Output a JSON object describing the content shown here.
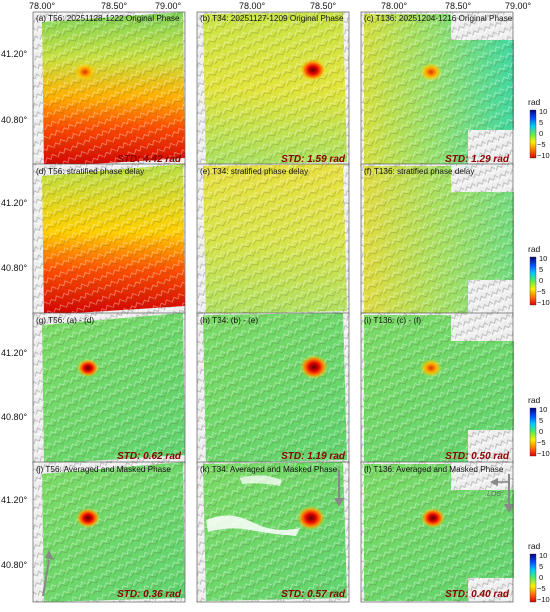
{
  "axes": {
    "lon_ticks": [
      "78.00°",
      "78.50°",
      "79.00°"
    ],
    "lat_ticks": [
      "41.20°",
      "40.80°"
    ]
  },
  "colorbar": {
    "unit": "rad",
    "ticks": [
      "10",
      "5",
      "0",
      "−5",
      "−10"
    ],
    "colors": [
      "#00007f",
      "#0050ff",
      "#00c8ff",
      "#55ee55",
      "#ffee00",
      "#ff7700",
      "#dd0000"
    ]
  },
  "rows": [
    {
      "panels": [
        {
          "title": "(a) T56: 20251128-1222 Original Phase",
          "std": "STD: 4.42 rad"
        },
        {
          "title": "(b) T34: 20251127-1209 Original Phase",
          "std": "STD: 1.59 rad"
        },
        {
          "title": "(c) T136: 20251204-1216 Original Phase",
          "std": "STD: 1.29 rad"
        }
      ]
    },
    {
      "panels": [
        {
          "title": "(d) T56: stratified phase delay",
          "std": ""
        },
        {
          "title": "(e) T34: stratified phase delay",
          "std": ""
        },
        {
          "title": "(f) T136: stratified phase delay",
          "std": ""
        }
      ]
    },
    {
      "panels": [
        {
          "title": "(g) T56: (a) - (d)",
          "std": "STD: 0.62 rad"
        },
        {
          "title": "(h) T34: (b) - (e)",
          "std": "STD: 1.19 rad"
        },
        {
          "title": "(i) T136: (c) - (f)",
          "std": "STD: 0.50 rad"
        }
      ]
    },
    {
      "panels": [
        {
          "title": "(j) T56: Averaged and Masked Phase",
          "std": "STD: 0.36 rad"
        },
        {
          "title": "(k) T34: Averaged and Masked Phase",
          "std": "STD: 0.57 rad"
        },
        {
          "title": "(l) T136: Averaged and Masked Phase",
          "std": "STD: 0.40 rad"
        }
      ]
    }
  ],
  "los_label": "LOS"
}
